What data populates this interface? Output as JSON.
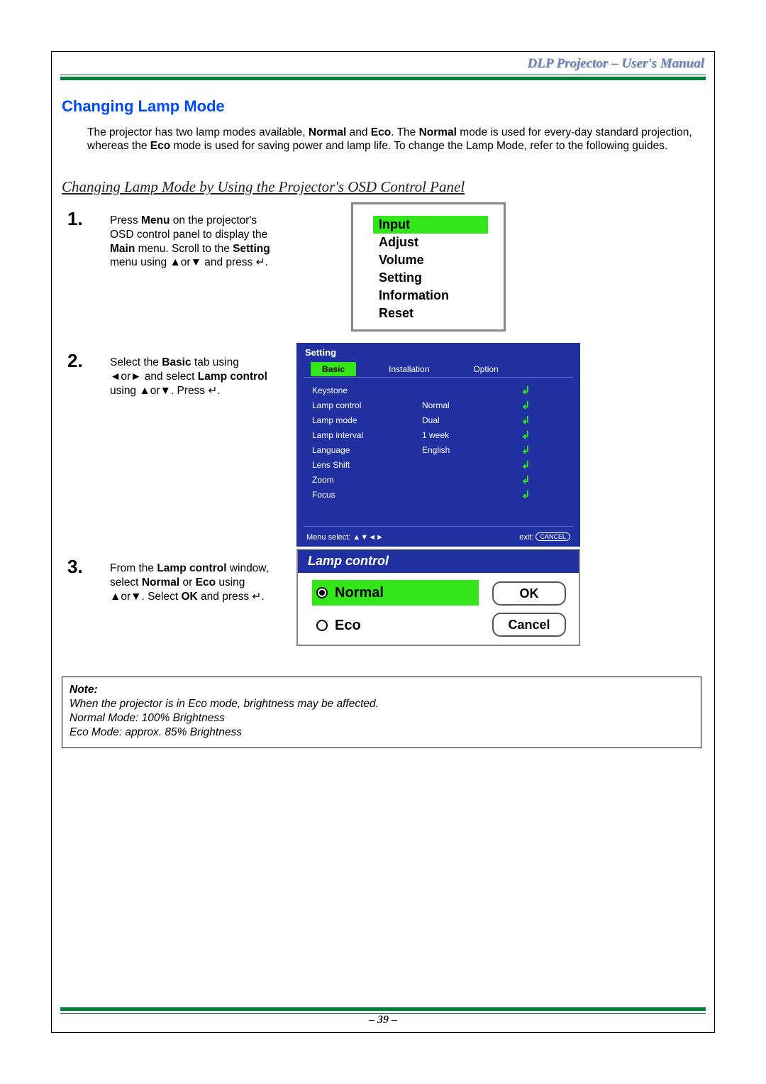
{
  "header": {
    "title": "DLP Projector – User's Manual"
  },
  "footer": {
    "page": "– 39 –"
  },
  "section_heading": "Changing Lamp Mode",
  "intro": {
    "p1a": "The projector has two lamp modes available, ",
    "b1": "Normal",
    "p1b": " and ",
    "b2": "Eco",
    "p1c": ". The ",
    "b3": "Normal",
    "p1d": " mode is used for every-day standard projection, whereas the ",
    "b4": "Eco",
    "p1e": " mode is used for saving power and lamp life. To change the Lamp Mode, refer to the following guides."
  },
  "sub_heading": "Changing Lamp Mode by Using the Projector's OSD Control Panel",
  "steps": {
    "s1": {
      "num": "1.",
      "t1": "Press ",
      "b1": "Menu",
      "t2": " on the projector's OSD control panel to display the ",
      "b2": "Main",
      "t3": " menu. Scroll to the ",
      "b3": "Setting",
      "t4": " menu using ▲or▼ and press ↵."
    },
    "s2": {
      "num": "2.",
      "t1": "Select the ",
      "b1": "Basic",
      "t2": " tab using ◄or► and select ",
      "b2": "Lamp control",
      "t3": " using ▲or▼. Press ↵."
    },
    "s3": {
      "num": "3.",
      "t1": "From the ",
      "b1": "Lamp control",
      "t2": " window, select ",
      "b2": "Normal",
      "t3": " or ",
      "b3": "Eco",
      "t4": " using ▲or▼. Select ",
      "b4": "OK",
      "t5": " and press ↵."
    }
  },
  "menu1": {
    "items": [
      "Input",
      "Adjust",
      "Volume",
      "Setting",
      "Information",
      "Reset"
    ],
    "selected_index": 0
  },
  "menu2": {
    "title": "Setting",
    "tabs": [
      "Basic",
      "Installation",
      "Option"
    ],
    "active_tab": 0,
    "rows": [
      {
        "label": "Keystone",
        "value": ""
      },
      {
        "label": "Lamp control",
        "value": "Normal"
      },
      {
        "label": "Lamp mode",
        "value": "Dual"
      },
      {
        "label": "Lamp interval",
        "value": "1 week"
      },
      {
        "label": "Language",
        "value": "English"
      },
      {
        "label": "Lens Shift",
        "value": ""
      },
      {
        "label": "Zoom",
        "value": ""
      },
      {
        "label": "Focus",
        "value": ""
      }
    ],
    "enter_glyph": "↲",
    "footer_left": "Menu select: ▲▼◄►",
    "footer_right_label": "exit:",
    "footer_right_pill": "CANCEL",
    "colors": {
      "bg": "#2030a0",
      "highlight": "#33e619"
    }
  },
  "menu3": {
    "title": "Lamp control",
    "options": [
      "Normal",
      "Eco"
    ],
    "selected_index": 0,
    "ok": "OK",
    "cancel": "Cancel"
  },
  "note": {
    "heading": "Note:",
    "l1": "When the projector is in Eco mode, brightness may be affected.",
    "l2": "Normal Mode: 100% Brightness",
    "l3": "Eco Mode: approx. 85% Brightness"
  }
}
